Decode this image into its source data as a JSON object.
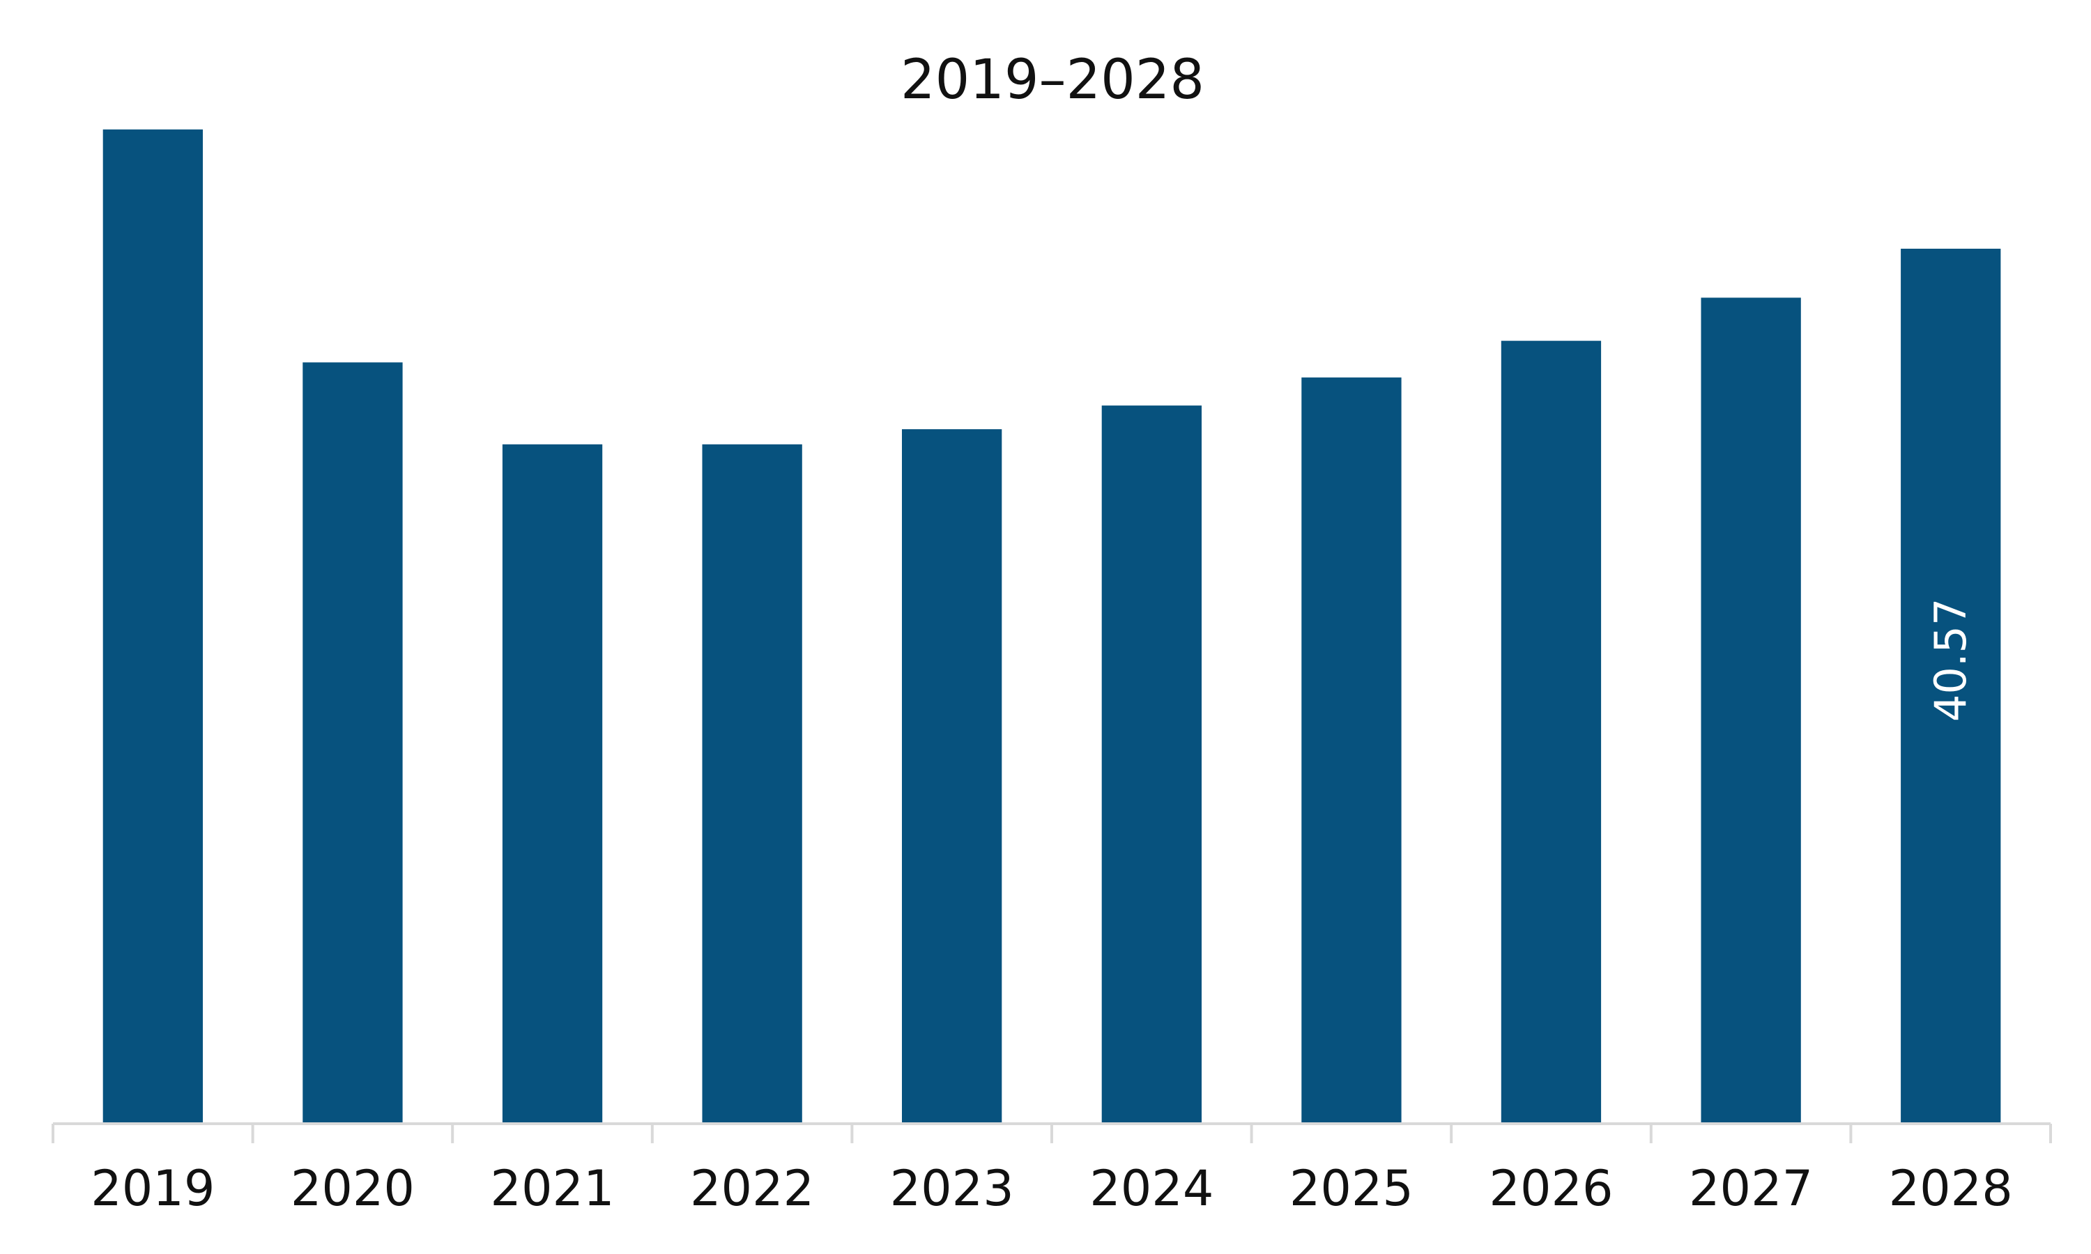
{
  "chart_data": {
    "type": "bar",
    "title": "2019–2028",
    "xlabel": "",
    "ylabel": "",
    "categories": [
      "2019",
      "2020",
      "2021",
      "2022",
      "2023",
      "2024",
      "2025",
      "2026",
      "2027",
      "2028"
    ],
    "values": [
      46.1,
      35.3,
      31.5,
      31.5,
      32.2,
      33.3,
      34.6,
      36.3,
      38.3,
      40.57
    ],
    "data_labels": [
      "",
      "",
      "",
      "",
      "",
      "",
      "",
      "",
      "",
      "40.57"
    ],
    "ylim": [
      0,
      48
    ],
    "grid": false,
    "legend": "none",
    "colors": {
      "bar": "#07527E",
      "axis": "#D9D9D9",
      "data_label": "#FFFFFF",
      "text": "#111111"
    }
  }
}
